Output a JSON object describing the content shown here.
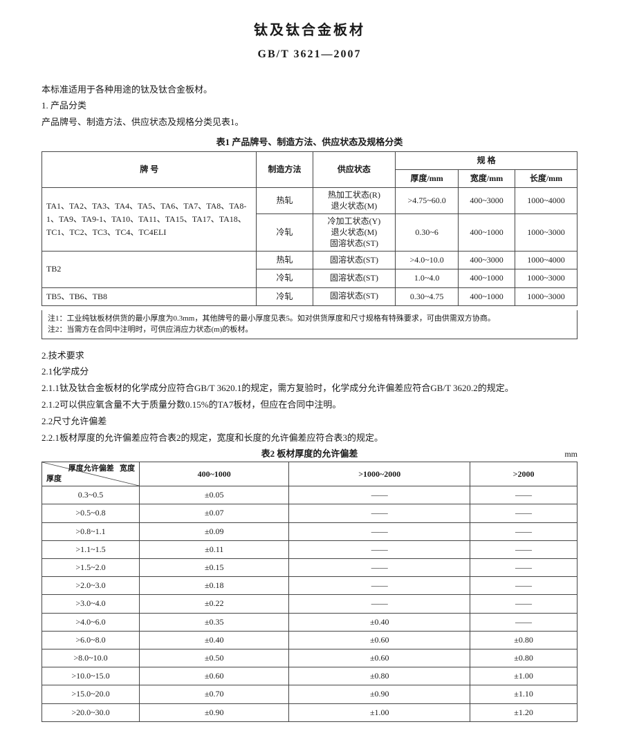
{
  "title_main": "钛及钛合金板材",
  "title_sub": "GB/T 3621—2007",
  "intro": "本标准适用于各种用途的钛及钛合金板材。",
  "sec1_h": "1. 产品分类",
  "sec1_line": "产品牌号、制造方法、供应状态及规格分类见表1。",
  "table1": {
    "caption": "表1 产品牌号、制造方法、供应状态及规格分类",
    "head": {
      "brand": "牌 号",
      "method": "制造方法",
      "supply": "供应状态",
      "spec": "规 格",
      "thk": "厚度/mm",
      "wid": "宽度/mm",
      "len": "长度/mm"
    },
    "rows": [
      {
        "brand": "TA1、TA2、TA3、TA4、TA5、TA6、TA7、TA8、TA8-1、TA9、TA9-1、TA10、TA11、TA15、TA17、TA18、TC1、TC2、TC3、TC4、TC4ELI",
        "sub": [
          {
            "method": "热轧",
            "supply": "热加工状态(R)\n退火状态(M)",
            "thk": ">4.75~60.0",
            "wid": "400~3000",
            "len": "1000~4000"
          },
          {
            "method": "冷轧",
            "supply": "冷加工状态(Y)\n退火状态(M)\n固溶状态(ST)",
            "thk": "0.30~6",
            "wid": "400~1000",
            "len": "1000~3000"
          }
        ]
      },
      {
        "brand": "TB2",
        "sub": [
          {
            "method": "热轧",
            "supply": "固溶状态(ST)",
            "thk": ">4.0~10.0",
            "wid": "400~3000",
            "len": "1000~4000"
          },
          {
            "method": "冷轧",
            "supply": "固溶状态(ST)",
            "thk": "1.0~4.0",
            "wid": "400~1000",
            "len": "1000~3000"
          }
        ]
      },
      {
        "brand": "TB5、TB6、TB8",
        "sub": [
          {
            "method": "冷轧",
            "supply": "固溶状态(ST)",
            "thk": "0.30~4.75",
            "wid": "400~1000",
            "len": "1000~3000"
          }
        ]
      }
    ],
    "note1": "注1：工业纯钛板材供货的最小厚度为0.3mm，其他牌号的最小厚度见表5。如对供货厚度和尺寸规格有特殊要求，可由供需双方协商。",
    "note2": "注2：当需方在合同中注明时，可供应消应力状态(m)的板材。"
  },
  "sec2": {
    "h": "2.技术要求",
    "s21": "2.1化学成分",
    "s211": "2.1.1钛及钛合金板材的化学成分应符合GB/T 3620.1的规定，需方复验时，化学成分允许偏差应符合GB/T 3620.2的规定。",
    "s212": "2.1.2可以供应氧含量不大于质量分数0.15%的TA7板材，但应在合同中注明。",
    "s22": "2.2尺寸允许偏差",
    "s221": "2.2.1板材厚度的允许偏差应符合表2的规定，宽度和长度的允许偏差应符合表3的规定。"
  },
  "table2": {
    "caption": "表2 板材厚度的允许偏差",
    "unit": "mm",
    "diag_top": "宽度",
    "diag_bot": "厚度",
    "diag_mid": "厚度允许偏差",
    "cols": [
      "400~1000",
      ">1000~2000",
      ">2000"
    ],
    "rows": [
      {
        "t": "0.3~0.5",
        "v": [
          "±0.05",
          "——",
          "——"
        ]
      },
      {
        "t": ">0.5~0.8",
        "v": [
          "±0.07",
          "——",
          "——"
        ]
      },
      {
        "t": ">0.8~1.1",
        "v": [
          "±0.09",
          "——",
          "——"
        ]
      },
      {
        "t": ">1.1~1.5",
        "v": [
          "±0.11",
          "——",
          "——"
        ]
      },
      {
        "t": ">1.5~2.0",
        "v": [
          "±0.15",
          "——",
          "——"
        ]
      },
      {
        "t": ">2.0~3.0",
        "v": [
          "±0.18",
          "——",
          "——"
        ]
      },
      {
        "t": ">3.0~4.0",
        "v": [
          "±0.22",
          "——",
          "——"
        ]
      },
      {
        "t": ">4.0~6.0",
        "v": [
          "±0.35",
          "±0.40",
          "——"
        ]
      },
      {
        "t": ">6.0~8.0",
        "v": [
          "±0.40",
          "±0.60",
          "±0.80"
        ]
      },
      {
        "t": ">8.0~10.0",
        "v": [
          "±0.50",
          "±0.60",
          "±0.80"
        ]
      },
      {
        "t": ">10.0~15.0",
        "v": [
          "±0.60",
          "±0.80",
          "±1.00"
        ]
      },
      {
        "t": ">15.0~20.0",
        "v": [
          "±0.70",
          "±0.90",
          "±1.10"
        ]
      },
      {
        "t": ">20.0~30.0",
        "v": [
          "±0.90",
          "±1.00",
          "±1.20"
        ]
      }
    ]
  }
}
